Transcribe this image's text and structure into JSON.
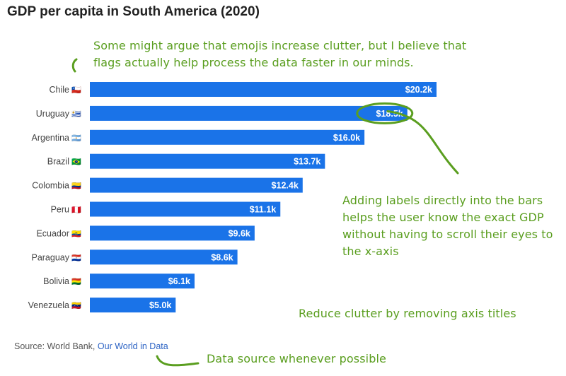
{
  "title": "GDP per capita in South America (2020)",
  "annotations": {
    "emoji_note": [
      "Some might argue that emojis increase clutter, but I believe that",
      "flags actually help process the data faster in our minds."
    ],
    "labels_note": [
      "Adding labels directly into the bars",
      "helps the user know the exact GDP",
      "without having to scroll their eyes to",
      "the x-axis"
    ],
    "clutter_note": "Reduce clutter by removing axis titles",
    "source_note": "Data source whenever possible"
  },
  "source": {
    "prefix": "Source: World Bank,",
    "link_text": "Our World in Data"
  },
  "colors": {
    "bar": "#1a73e8",
    "annotation": "#5a9e1f",
    "label_text": "#ffffff",
    "category_text": "#444444"
  },
  "chart_data": {
    "type": "bar",
    "orientation": "horizontal",
    "categories": [
      "Chile",
      "Uruguay",
      "Argentina",
      "Brazil",
      "Colombia",
      "Peru",
      "Ecuador",
      "Paraguay",
      "Bolivia",
      "Venezuela"
    ],
    "flags": [
      "🇨🇱",
      "🇺🇾",
      "🇦🇷",
      "🇧🇷",
      "🇨🇴",
      "🇵🇪",
      "🇪🇨",
      "🇵🇾",
      "🇧🇴",
      "🇻🇪"
    ],
    "values": [
      20.2,
      18.5,
      16.0,
      13.7,
      12.4,
      11.1,
      9.6,
      8.6,
      6.1,
      5.0
    ],
    "labels": [
      "$20.2k",
      "$18.5k",
      "$16.0k",
      "$13.7k",
      "$12.4k",
      "$11.1k",
      "$9.6k",
      "$8.6k",
      "$6.1k",
      "$5.0k"
    ],
    "title": "GDP per capita in South America (2020)",
    "xlabel": "",
    "ylabel": "",
    "xlim": [
      0,
      20.2
    ],
    "grid": false,
    "highlighted_category": "Uruguay"
  }
}
